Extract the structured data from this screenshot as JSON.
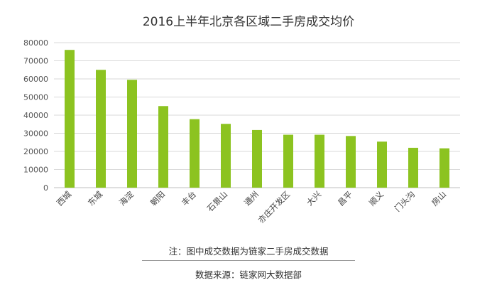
{
  "chart_data": {
    "type": "bar",
    "title": "2016上半年北京各区域二手房成交均价",
    "xlabel": "",
    "ylabel": "",
    "ylim": [
      0,
      80000
    ],
    "yticks": [
      0,
      10000,
      20000,
      30000,
      40000,
      50000,
      60000,
      70000,
      80000
    ],
    "grid": true,
    "legend": "none",
    "bar_color": "#8cc320",
    "categories": [
      "西城",
      "东城",
      "海淀",
      "朝阳",
      "丰台",
      "石景山",
      "通州",
      "亦庄开发区",
      "大兴",
      "昌平",
      "顺义",
      "门头沟",
      "房山"
    ],
    "values": [
      76000,
      65000,
      59500,
      45000,
      37800,
      35200,
      31800,
      29200,
      29200,
      28500,
      25400,
      22000,
      21700
    ]
  },
  "footer": {
    "note": "注：图中成交数据为链家二手房成交数据",
    "source": "数据来源：链家网大数据部"
  }
}
